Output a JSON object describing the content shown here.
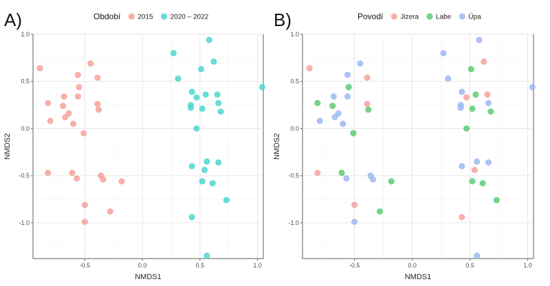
{
  "chart_data": [
    {
      "type": "scatter",
      "panel_tag": "A)",
      "xlabel": "NMDS1",
      "ylabel": "NMDS2",
      "xlim": [
        -0.95,
        1.05
      ],
      "ylim": [
        -1.38,
        1.0
      ],
      "xticks": [
        {
          "v": -0.5,
          "label": "-0.5"
        },
        {
          "v": 0,
          "label": "0.0"
        },
        {
          "v": 0.5,
          "label": "0.5"
        },
        {
          "v": 1.0,
          "label": "1.0"
        }
      ],
      "yticks": [
        {
          "v": 1.0,
          "label": "1.0"
        },
        {
          "v": 0.5,
          "label": "0.5"
        },
        {
          "v": 0,
          "label": "0.0"
        },
        {
          "v": -0.5,
          "label": "-0.5"
        },
        {
          "v": -1.0,
          "label": "-1.0"
        }
      ],
      "grid": true,
      "legend": {
        "title": "Období",
        "position": "top",
        "entries": [
          {
            "key": "2015",
            "label": "2015",
            "color": "#F4A29A"
          },
          {
            "key": "2020-2022",
            "label": "2020 – 2022",
            "color": "#4FD6D0"
          }
        ]
      },
      "series": [
        {
          "name": "2015",
          "color": "#F4A29A",
          "points": [
            [
              -0.89,
              0.64
            ],
            [
              -0.45,
              0.69
            ],
            [
              -0.56,
              0.57
            ],
            [
              -0.39,
              0.54
            ],
            [
              -0.55,
              0.44
            ],
            [
              -0.68,
              0.34
            ],
            [
              -0.56,
              0.34
            ],
            [
              -0.82,
              0.27
            ],
            [
              -0.69,
              0.24
            ],
            [
              -0.39,
              0.26
            ],
            [
              -0.38,
              0.2
            ],
            [
              -0.64,
              0.16
            ],
            [
              -0.67,
              0.12
            ],
            [
              -0.8,
              0.08
            ],
            [
              -0.6,
              0.05
            ],
            [
              -0.51,
              -0.05
            ],
            [
              -0.82,
              -0.47
            ],
            [
              -0.61,
              -0.47
            ],
            [
              -0.57,
              -0.53
            ],
            [
              -0.36,
              -0.5
            ],
            [
              -0.34,
              -0.54
            ],
            [
              -0.18,
              -0.56
            ],
            [
              -0.5,
              -0.81
            ],
            [
              -0.28,
              -0.88
            ],
            [
              -0.5,
              -0.99
            ]
          ]
        },
        {
          "name": "2020 – 2022",
          "color": "#4FD6D0",
          "points": [
            [
              0.27,
              0.8
            ],
            [
              0.58,
              0.94
            ],
            [
              0.62,
              0.71
            ],
            [
              0.51,
              0.63
            ],
            [
              0.31,
              0.53
            ],
            [
              1.04,
              0.44
            ],
            [
              0.43,
              0.39
            ],
            [
              0.47,
              0.33
            ],
            [
              0.55,
              0.36
            ],
            [
              0.65,
              0.36
            ],
            [
              0.42,
              0.25
            ],
            [
              0.42,
              0.22
            ],
            [
              0.52,
              0.21
            ],
            [
              0.66,
              0.27
            ],
            [
              0.68,
              0.18
            ],
            [
              0.47,
              0.0
            ],
            [
              0.43,
              -0.4
            ],
            [
              0.56,
              -0.35
            ],
            [
              0.66,
              -0.36
            ],
            [
              0.54,
              -0.44
            ],
            [
              0.52,
              -0.56
            ],
            [
              0.61,
              -0.58
            ],
            [
              0.73,
              -0.76
            ],
            [
              0.43,
              -0.94
            ],
            [
              0.56,
              -1.35
            ]
          ]
        }
      ]
    },
    {
      "type": "scatter",
      "panel_tag": "B)",
      "xlabel": "NMDS1",
      "ylabel": "NMDS2",
      "xlim": [
        -0.95,
        1.05
      ],
      "ylim": [
        -1.38,
        1.0
      ],
      "xticks": [
        {
          "v": -0.5,
          "label": "-0.5"
        },
        {
          "v": 0,
          "label": "0.0"
        },
        {
          "v": 0.5,
          "label": "0.5"
        },
        {
          "v": 1.0,
          "label": "1.0"
        }
      ],
      "yticks": [
        {
          "v": 1.0,
          "label": "1.0"
        },
        {
          "v": 0.5,
          "label": "0.5"
        },
        {
          "v": 0,
          "label": "0.0"
        },
        {
          "v": -0.5,
          "label": "-0.5"
        },
        {
          "v": -1.0,
          "label": "-1.0"
        }
      ],
      "grid": true,
      "legend": {
        "title": "Povodí",
        "position": "top",
        "entries": [
          {
            "key": "Jizera",
            "label": "Jizera",
            "color": "#F4A29A"
          },
          {
            "key": "Labe",
            "label": "Labe",
            "color": "#5CCB73"
          },
          {
            "key": "Upa",
            "label": "Úpa",
            "color": "#9DB8F2"
          }
        ]
      },
      "series": [
        {
          "name": "Jizera",
          "color": "#F4A29A",
          "points": [
            [
              -0.89,
              0.64
            ],
            [
              -0.39,
              0.54
            ],
            [
              -0.39,
              0.26
            ],
            [
              -0.82,
              -0.47
            ],
            [
              -0.5,
              -0.81
            ],
            [
              0.62,
              0.71
            ],
            [
              0.47,
              0.33
            ],
            [
              0.65,
              0.36
            ],
            [
              0.54,
              -0.44
            ],
            [
              0.43,
              -0.94
            ]
          ]
        },
        {
          "name": "Labe",
          "color": "#5CCB73",
          "points": [
            [
              -0.55,
              0.44
            ],
            [
              -0.82,
              0.27
            ],
            [
              -0.69,
              0.24
            ],
            [
              -0.38,
              0.2
            ],
            [
              -0.51,
              -0.05
            ],
            [
              -0.61,
              -0.47
            ],
            [
              -0.18,
              -0.56
            ],
            [
              -0.28,
              -0.88
            ],
            [
              0.51,
              0.63
            ],
            [
              0.55,
              0.36
            ],
            [
              0.52,
              0.21
            ],
            [
              0.68,
              0.18
            ],
            [
              0.47,
              0.0
            ],
            [
              0.52,
              -0.56
            ],
            [
              0.61,
              -0.58
            ],
            [
              0.73,
              -0.76
            ]
          ]
        },
        {
          "name": "Úpa",
          "color": "#9DB8F2",
          "points": [
            [
              -0.45,
              0.69
            ],
            [
              -0.56,
              0.57
            ],
            [
              -0.68,
              0.34
            ],
            [
              -0.56,
              0.34
            ],
            [
              -0.64,
              0.16
            ],
            [
              -0.67,
              0.12
            ],
            [
              -0.8,
              0.08
            ],
            [
              -0.6,
              0.05
            ],
            [
              -0.57,
              -0.53
            ],
            [
              -0.36,
              -0.5
            ],
            [
              -0.34,
              -0.54
            ],
            [
              -0.5,
              -0.99
            ],
            [
              0.27,
              0.8
            ],
            [
              0.58,
              0.94
            ],
            [
              0.31,
              0.53
            ],
            [
              1.04,
              0.44
            ],
            [
              0.43,
              0.39
            ],
            [
              0.42,
              0.25
            ],
            [
              0.42,
              0.22
            ],
            [
              0.66,
              0.27
            ],
            [
              0.43,
              -0.4
            ],
            [
              0.56,
              -0.35
            ],
            [
              0.66,
              -0.36
            ],
            [
              0.56,
              -1.35
            ]
          ]
        }
      ]
    }
  ]
}
